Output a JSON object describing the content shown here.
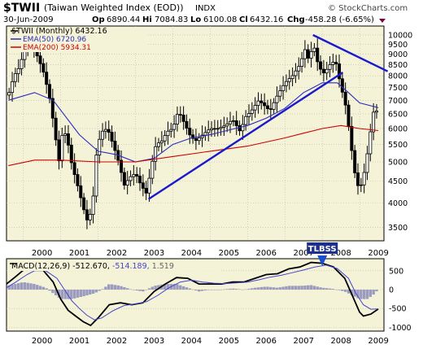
{
  "header": {
    "symbol": "$TWII",
    "name": "(Taiwan Weighted Index (EOD))",
    "exchange": "INDX",
    "watermark": "© StockCharts.com",
    "date": "30-Jun-2009",
    "quote": {
      "open_label": "Op",
      "open": "6890.44",
      "high_label": "Hi",
      "high": "7084.83",
      "low_label": "Lo",
      "low": "6100.08",
      "close_label": "Cl",
      "close": "6432.16",
      "change_label": "Chg",
      "change": "-458.28 (-6.65%)"
    }
  },
  "legend": {
    "price": "$TWII (Monthly) 6432.16",
    "ema50": "EMA(50) 6720.96",
    "ema200": "EMA(200) 5934.31"
  },
  "annotation": {
    "label": "TLBSS",
    "x": 2008.0
  },
  "macd_legend": {
    "label": "MACD(12,26,9)",
    "macd": "-512.670",
    "signal": "-514.189",
    "histogram": "1.519"
  },
  "colors": {
    "background": "#ffffff",
    "plot_bg": "#f5f3d7",
    "candle": "#000000",
    "ema50": "#2b2bbf",
    "ema200": "#cc0000",
    "trendline": "#1a1acc",
    "macd_line": "#000000",
    "signal_line": "#4444cc",
    "histogram": "#9b9bbf",
    "change_down": "#cc0000",
    "annotation_bg": "#1e2f8c",
    "arrow": "#1a4fcc"
  },
  "chart_data": [
    {
      "type": "candlestick",
      "title": "$TWII (Taiwan Weighted Index (EOD))",
      "scale": "log",
      "ylim": [
        3250,
        10500
      ],
      "xlim": [
        1999.55,
        2009.65
      ],
      "x_ticks": [
        "2000",
        "2001",
        "2002",
        "2003",
        "2004",
        "2005",
        "2006",
        "2007",
        "2008",
        "2009"
      ],
      "y_ticks": [
        3500,
        4000,
        4500,
        5000,
        5500,
        6000,
        6500,
        7000,
        7500,
        8000,
        8500,
        9000,
        9500,
        10000
      ],
      "grid": true,
      "legend_position": "top-left",
      "ohlc_anchors": [
        [
          1999.6,
          7200
        ],
        [
          1999.75,
          8000
        ],
        [
          1999.9,
          8400
        ],
        [
          2000.1,
          9700
        ],
        [
          2000.25,
          9400
        ],
        [
          2000.4,
          8800
        ],
        [
          2000.55,
          8100
        ],
        [
          2000.7,
          7100
        ],
        [
          2000.85,
          5800
        ],
        [
          2000.95,
          5000
        ],
        [
          2001.05,
          5900
        ],
        [
          2001.15,
          5800
        ],
        [
          2001.3,
          4900
        ],
        [
          2001.45,
          4400
        ],
        [
          2001.6,
          3900
        ],
        [
          2001.72,
          3600
        ],
        [
          2001.85,
          3900
        ],
        [
          2001.97,
          5400
        ],
        [
          2002.1,
          5900
        ],
        [
          2002.25,
          6000
        ],
        [
          2002.4,
          5500
        ],
        [
          2002.55,
          5000
        ],
        [
          2002.7,
          4400
        ],
        [
          2002.85,
          4600
        ],
        [
          2003.0,
          4700
        ],
        [
          2003.15,
          4400
        ],
        [
          2003.3,
          4200
        ],
        [
          2003.45,
          5000
        ],
        [
          2003.55,
          5500
        ],
        [
          2003.7,
          5600
        ],
        [
          2003.85,
          5900
        ],
        [
          2004.0,
          6000
        ],
        [
          2004.15,
          6600
        ],
        [
          2004.3,
          6200
        ],
        [
          2004.45,
          5800
        ],
        [
          2004.6,
          5600
        ],
        [
          2004.8,
          5800
        ],
        [
          2005.0,
          6000
        ],
        [
          2005.2,
          6000
        ],
        [
          2005.4,
          6100
        ],
        [
          2005.6,
          6300
        ],
        [
          2005.8,
          5900
        ],
        [
          2005.95,
          6400
        ],
        [
          2006.1,
          6600
        ],
        [
          2006.3,
          7000
        ],
        [
          2006.45,
          6800
        ],
        [
          2006.6,
          6600
        ],
        [
          2006.8,
          7200
        ],
        [
          2007.0,
          7700
        ],
        [
          2007.2,
          8000
        ],
        [
          2007.4,
          8500
        ],
        [
          2007.55,
          9300
        ],
        [
          2007.65,
          8600
        ],
        [
          2007.75,
          9600
        ],
        [
          2007.9,
          8400
        ],
        [
          2008.05,
          8100
        ],
        [
          2008.2,
          8500
        ],
        [
          2008.35,
          8700
        ],
        [
          2008.5,
          7500
        ],
        [
          2008.6,
          7000
        ],
        [
          2008.7,
          6100
        ],
        [
          2008.8,
          5200
        ],
        [
          2008.9,
          4500
        ],
        [
          2009.0,
          4300
        ],
        [
          2009.1,
          4600
        ],
        [
          2009.2,
          5200
        ],
        [
          2009.3,
          6000
        ],
        [
          2009.4,
          6800
        ],
        [
          2009.5,
          6432
        ]
      ],
      "overlays": [
        {
          "name": "EMA(50)",
          "points": [
            [
              1999.6,
              7000
            ],
            [
              2000.3,
              7300
            ],
            [
              2000.8,
              7000
            ],
            [
              2001.5,
              5800
            ],
            [
              2002.0,
              5300
            ],
            [
              2002.5,
              5200
            ],
            [
              2003.0,
              5000
            ],
            [
              2003.5,
              5100
            ],
            [
              2004.0,
              5500
            ],
            [
              2004.5,
              5700
            ],
            [
              2005.0,
              5800
            ],
            [
              2005.5,
              5950
            ],
            [
              2006.0,
              6100
            ],
            [
              2006.5,
              6350
            ],
            [
              2007.0,
              6700
            ],
            [
              2007.5,
              7300
            ],
            [
              2008.0,
              7700
            ],
            [
              2008.4,
              7700
            ],
            [
              2008.7,
              7300
            ],
            [
              2009.0,
              6900
            ],
            [
              2009.5,
              6720.96
            ]
          ]
        },
        {
          "name": "EMA(200)",
          "points": [
            [
              1999.6,
              4900
            ],
            [
              2000.3,
              5050
            ],
            [
              2001.0,
              5050
            ],
            [
              2002.0,
              5000
            ],
            [
              2003.0,
              5000
            ],
            [
              2004.0,
              5150
            ],
            [
              2005.0,
              5300
            ],
            [
              2006.0,
              5450
            ],
            [
              2007.0,
              5700
            ],
            [
              2007.5,
              5850
            ],
            [
              2008.0,
              6000
            ],
            [
              2008.5,
              6100
            ],
            [
              2009.0,
              6000
            ],
            [
              2009.5,
              5934.31
            ]
          ]
        }
      ],
      "trendlines": [
        {
          "from": [
            2003.35,
            4080
          ],
          "to": [
            2008.55,
            8150
          ]
        },
        {
          "from": [
            2007.75,
            10000
          ],
          "to": [
            2009.75,
            8200
          ]
        }
      ]
    },
    {
      "type": "line",
      "title": "MACD(12,26,9)",
      "ylim": [
        -1100,
        820
      ],
      "y_ticks": [
        500,
        0,
        -500,
        -1000
      ],
      "series": [
        {
          "name": "MACD",
          "points": [
            [
              1999.55,
              150
            ],
            [
              1999.8,
              350
            ],
            [
              2000.1,
              600
            ],
            [
              2000.3,
              650
            ],
            [
              2000.5,
              550
            ],
            [
              2000.8,
              200
            ],
            [
              2001.0,
              -250
            ],
            [
              2001.2,
              -550
            ],
            [
              2001.4,
              -700
            ],
            [
              2001.6,
              -850
            ],
            [
              2001.8,
              -950
            ],
            [
              2002.0,
              -750
            ],
            [
              2002.3,
              -400
            ],
            [
              2002.6,
              -350
            ],
            [
              2002.9,
              -400
            ],
            [
              2003.2,
              -350
            ],
            [
              2003.5,
              -50
            ],
            [
              2003.8,
              150
            ],
            [
              2004.1,
              320
            ],
            [
              2004.4,
              300
            ],
            [
              2004.7,
              150
            ],
            [
              2005.0,
              150
            ],
            [
              2005.3,
              150
            ],
            [
              2005.6,
              200
            ],
            [
              2005.9,
              200
            ],
            [
              2006.2,
              300
            ],
            [
              2006.5,
              400
            ],
            [
              2006.8,
              420
            ],
            [
              2007.1,
              550
            ],
            [
              2007.4,
              600
            ],
            [
              2007.7,
              720
            ],
            [
              2008.0,
              700
            ],
            [
              2008.3,
              600
            ],
            [
              2008.6,
              300
            ],
            [
              2008.8,
              -150
            ],
            [
              2009.0,
              -600
            ],
            [
              2009.1,
              -700
            ],
            [
              2009.3,
              -650
            ],
            [
              2009.5,
              -512.67
            ]
          ]
        },
        {
          "name": "Signal",
          "points": [
            [
              1999.55,
              50
            ],
            [
              1999.8,
              200
            ],
            [
              2000.1,
              400
            ],
            [
              2000.3,
              500
            ],
            [
              2000.6,
              500
            ],
            [
              2000.9,
              300
            ],
            [
              2001.1,
              0
            ],
            [
              2001.3,
              -300
            ],
            [
              2001.5,
              -500
            ],
            [
              2001.7,
              -680
            ],
            [
              2001.9,
              -800
            ],
            [
              2002.1,
              -750
            ],
            [
              2002.4,
              -560
            ],
            [
              2002.7,
              -420
            ],
            [
              2003.0,
              -380
            ],
            [
              2003.3,
              -320
            ],
            [
              2003.6,
              -150
            ],
            [
              2003.9,
              50
            ],
            [
              2004.2,
              200
            ],
            [
              2004.5,
              250
            ],
            [
              2004.8,
              200
            ],
            [
              2005.1,
              170
            ],
            [
              2005.4,
              160
            ],
            [
              2005.7,
              180
            ],
            [
              2006.0,
              200
            ],
            [
              2006.3,
              260
            ],
            [
              2006.6,
              330
            ],
            [
              2006.9,
              380
            ],
            [
              2007.2,
              450
            ],
            [
              2007.5,
              520
            ],
            [
              2007.8,
              600
            ],
            [
              2008.1,
              650
            ],
            [
              2008.4,
              560
            ],
            [
              2008.7,
              300
            ],
            [
              2008.9,
              -100
            ],
            [
              2009.1,
              -400
            ],
            [
              2009.3,
              -520
            ],
            [
              2009.5,
              -514.189
            ]
          ]
        }
      ],
      "histogram_anchors": [
        [
          1999.55,
          100
        ],
        [
          2000.0,
          200
        ],
        [
          2000.3,
          150
        ],
        [
          2000.6,
          50
        ],
        [
          2000.8,
          -100
        ],
        [
          2001.0,
          -250
        ],
        [
          2001.3,
          -250
        ],
        [
          2001.6,
          -180
        ],
        [
          2001.9,
          -100
        ],
        [
          2002.1,
          0
        ],
        [
          2002.3,
          150
        ],
        [
          2002.6,
          100
        ],
        [
          2002.9,
          0
        ],
        [
          2003.2,
          -50
        ],
        [
          2003.5,
          100
        ],
        [
          2003.8,
          150
        ],
        [
          2004.1,
          150
        ],
        [
          2004.4,
          50
        ],
        [
          2004.7,
          -50
        ],
        [
          2005.0,
          0
        ],
        [
          2005.3,
          0
        ],
        [
          2005.6,
          30
        ],
        [
          2005.9,
          0
        ],
        [
          2006.2,
          50
        ],
        [
          2006.5,
          80
        ],
        [
          2006.8,
          50
        ],
        [
          2007.1,
          100
        ],
        [
          2007.4,
          100
        ],
        [
          2007.7,
          120
        ],
        [
          2008.0,
          50
        ],
        [
          2008.3,
          20
        ],
        [
          2008.6,
          -50
        ],
        [
          2008.8,
          -150
        ],
        [
          2009.0,
          -250
        ],
        [
          2009.2,
          -250
        ],
        [
          2009.35,
          -150
        ],
        [
          2009.5,
          1.5
        ]
      ]
    }
  ]
}
